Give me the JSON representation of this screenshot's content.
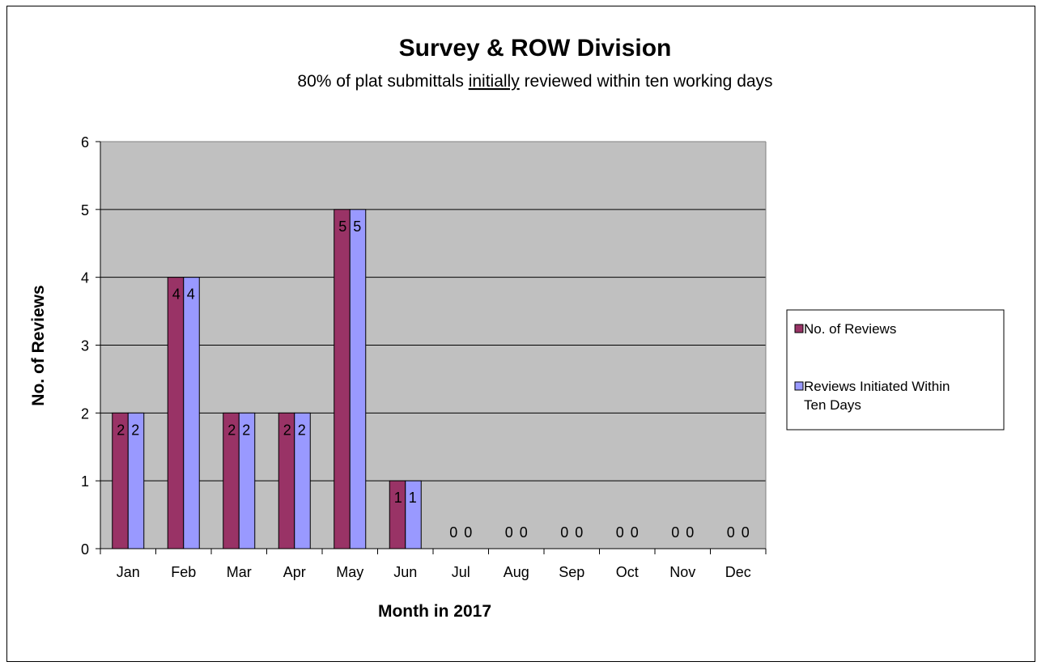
{
  "chart_data": {
    "type": "bar",
    "title": "Survey & ROW Division",
    "subtitle_parts": [
      "80% of plat submittals ",
      "initially",
      " reviewed within ten working days"
    ],
    "xlabel": "Month in 2017",
    "ylabel": "No. of Reviews",
    "categories": [
      "Jan",
      "Feb",
      "Mar",
      "Apr",
      "May",
      "Jun",
      "Jul",
      "Aug",
      "Sep",
      "Oct",
      "Nov",
      "Dec"
    ],
    "series": [
      {
        "name": "No. of Reviews",
        "values": [
          2,
          4,
          2,
          2,
          5,
          1,
          0,
          0,
          0,
          0,
          0,
          0
        ],
        "color": "#993366"
      },
      {
        "name": "Reviews Initiated Within Ten Days",
        "values": [
          2,
          4,
          2,
          2,
          5,
          1,
          0,
          0,
          0,
          0,
          0,
          0
        ],
        "color": "#9999ff"
      }
    ],
    "ylim": [
      0,
      6
    ],
    "yticks": [
      0,
      1,
      2,
      3,
      4,
      5,
      6
    ],
    "grid": true,
    "plot_background": "#c0c0c0",
    "legend_position": "right",
    "data_labels": true
  }
}
